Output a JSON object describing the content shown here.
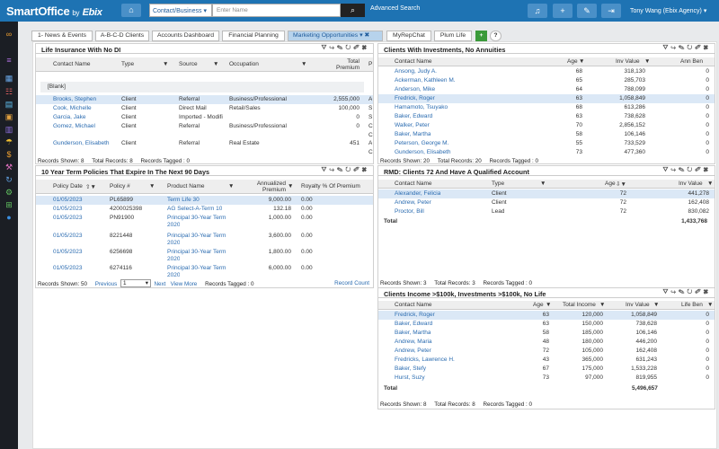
{
  "brand": {
    "name": "SmartOffice",
    "by": "by",
    "ebix": "Ebix"
  },
  "header": {
    "context_select": "Contact/Business",
    "search_placeholder": "Enter Name",
    "advanced_search": "Advanced Search",
    "user": "Tony Wang (Ebix Agency)",
    "colors": {
      "bar": "#1e73b3",
      "button": "#4a90c8"
    }
  },
  "tabs": [
    "1- News & Events",
    "A-B-C-D Clients",
    "Accounts Dashboard",
    "Financial Planning",
    "Marketing Opportunities",
    "MyRepChat",
    "Plum Life"
  ],
  "life": {
    "title": "Life Insurance With No DI",
    "headers": [
      "Contact Name",
      "Type",
      "Source",
      "Occupation",
      "Total Premium",
      "P"
    ],
    "blank": "[Blank]",
    "rows": [
      {
        "name": "Brooks, Stephen",
        "type": "Client",
        "source": "Referral",
        "occ": "Business/Professional",
        "prem": "2,555,000",
        "p": "A"
      },
      {
        "name": "Cook, Michelle",
        "type": "Client",
        "source": "Direct Mail",
        "occ": "Retail/Sales",
        "prem": "100,000",
        "p": "S"
      },
      {
        "name": "Garcia, Jake",
        "type": "Client",
        "source": "Imported - Modifi",
        "occ": "",
        "prem": "0",
        "p": "S"
      },
      {
        "name": "Gomez, Michael",
        "type": "Client",
        "source": "Referral",
        "occ": "Business/Professional",
        "prem": "0",
        "p": "C"
      },
      {
        "name": "",
        "type": "",
        "source": "",
        "occ": "",
        "prem": "",
        "p": "C"
      },
      {
        "name": "Gunderson, Elisabeth",
        "type": "Client",
        "source": "Referral",
        "occ": "Real Estate",
        "prem": "451",
        "p": "A"
      },
      {
        "name": "",
        "type": "",
        "source": "",
        "occ": "",
        "prem": "",
        "p": "C"
      }
    ],
    "footer": {
      "shown": "Records Shown: 8",
      "total": "Total Records: 8",
      "tagged": "Records Tagged : 0"
    }
  },
  "investments": {
    "title": "Clients With Investments, No Annuities",
    "headers": [
      "Contact Name",
      "Age",
      "Inv Value",
      "Ann Ben"
    ],
    "rows": [
      {
        "name": "Ansong, Judy A.",
        "age": "68",
        "inv": "318,130",
        "ann": "0"
      },
      {
        "name": "Ackerman, Kathleen M.",
        "age": "65",
        "inv": "285,703",
        "ann": "0"
      },
      {
        "name": "Anderson, Mike",
        "age": "64",
        "inv": "788,099",
        "ann": "0"
      },
      {
        "name": "Fredrick, Roger",
        "age": "63",
        "inv": "1,058,849",
        "ann": "0"
      },
      {
        "name": "Hamamoto, Tsuyako",
        "age": "68",
        "inv": "613,286",
        "ann": "0"
      },
      {
        "name": "Baker, Edward",
        "age": "63",
        "inv": "738,628",
        "ann": "0"
      },
      {
        "name": "Walker, Peter",
        "age": "70",
        "inv": "2,856,152",
        "ann": "0"
      },
      {
        "name": "Baker, Martha",
        "age": "58",
        "inv": "106,146",
        "ann": "0"
      },
      {
        "name": "Peterson, George M.",
        "age": "55",
        "inv": "733,529",
        "ann": "0"
      },
      {
        "name": "Gunderson, Elisabeth",
        "age": "73",
        "inv": "477,360",
        "ann": "0"
      }
    ],
    "footer": {
      "shown": "Records Shown: 20",
      "total": "Total Records: 20",
      "tagged": "Records Tagged : 0"
    }
  },
  "term": {
    "title": "10 Year Term Policies That Expire In The Next 90 Days",
    "headers": [
      "Policy Date",
      "Policy #",
      "Product Name",
      "Annualized Premium",
      "Royalty % Of Premium"
    ],
    "rows": [
      {
        "date": "01/05/2023",
        "policy": "PL65899",
        "product": "Term Life 30",
        "product2": "",
        "prem": "9,000.00",
        "roy": "0.00"
      },
      {
        "date": "01/05/2023",
        "policy": "4200025398",
        "product": "AG Select-A-Term 10",
        "product2": "",
        "prem": "132.18",
        "roy": "0.00"
      },
      {
        "date": "01/05/2023",
        "policy": "PN91900",
        "product": "Principal 30-Year Term",
        "product2": "2020",
        "prem": "1,000.00",
        "roy": "0.00"
      },
      {
        "date": "01/05/2023",
        "policy": "8221448",
        "product": "Principal 30-Year Term",
        "product2": "2020",
        "prem": "3,600.00",
        "roy": "0.00"
      },
      {
        "date": "01/05/2023",
        "policy": "6256698",
        "product": "Principal 30-Year Term",
        "product2": "2020",
        "prem": "1,800.00",
        "roy": "0.00"
      },
      {
        "date": "01/05/2023",
        "policy": "6274116",
        "product": "Principal 30-Year Term",
        "product2": "2020",
        "prem": "6,000.00",
        "roy": "0.00"
      }
    ],
    "footer": {
      "shown": "Records Shown: 50",
      "previous": "Previous",
      "page": "1",
      "next": "Next",
      "viewmore": "View More",
      "tagged": "Records Tagged : 0",
      "recordcount": "Record Count"
    }
  },
  "rmd": {
    "title": "RMD: Clients 72 And Have A Qualified Account",
    "headers": [
      "Contact Name",
      "Type",
      "Age",
      "Inv Value"
    ],
    "rows": [
      {
        "name": "Alexander, Felicia",
        "type": "Client",
        "age": "72",
        "inv": "441,278"
      },
      {
        "name": "Andrew, Peter",
        "type": "Client",
        "age": "72",
        "inv": "162,408"
      },
      {
        "name": "Proctor, Bill",
        "type": "Lead",
        "age": "72",
        "inv": "830,082"
      }
    ],
    "total_label": "Total",
    "total": "1,433,768",
    "footer": {
      "shown": "Records Shown: 3",
      "total": "Total Records: 3",
      "tagged": "Records Tagged : 0"
    }
  },
  "income": {
    "title": "Clients Income >$100k, Investments >$100k, No Life",
    "headers": [
      "Contact Name",
      "Age",
      "Total Income",
      "Inv Value",
      "Life Ben"
    ],
    "rows": [
      {
        "name": "Fredrick, Roger",
        "age": "63",
        "income": "120,000",
        "inv": "1,058,849",
        "life": "0"
      },
      {
        "name": "Baker, Edward",
        "age": "63",
        "income": "150,000",
        "inv": "738,628",
        "life": "0"
      },
      {
        "name": "Baker, Martha",
        "age": "58",
        "income": "185,000",
        "inv": "106,146",
        "life": "0"
      },
      {
        "name": "Andrew, Maria",
        "age": "48",
        "income": "180,000",
        "inv": "446,200",
        "life": "0"
      },
      {
        "name": "Andrew, Peter",
        "age": "72",
        "income": "105,000",
        "inv": "162,408",
        "life": "0"
      },
      {
        "name": "Fredricks, Lawrence H.",
        "age": "43",
        "income": "365,000",
        "inv": "631,243",
        "life": "0"
      },
      {
        "name": "Baker, Stefy",
        "age": "67",
        "income": "175,000",
        "inv": "1,533,228",
        "life": "0"
      },
      {
        "name": "Hurst, Suzy",
        "age": "73",
        "income": "97,000",
        "inv": "819,955",
        "life": "0"
      }
    ],
    "total_label": "Total",
    "total": "5,496,657",
    "footer": {
      "shown": "Records Shown: 8",
      "total": "Total Records: 8",
      "tagged": "Records Tagged : 0"
    }
  }
}
